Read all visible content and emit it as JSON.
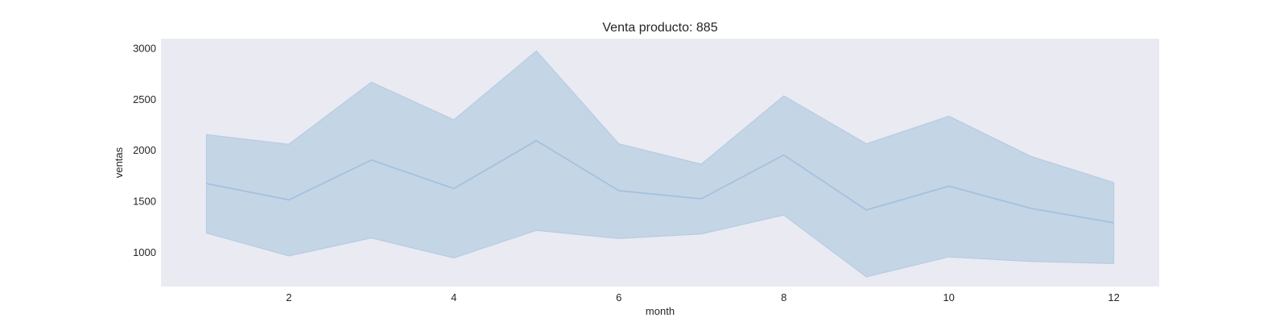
{
  "chart_data": {
    "type": "line",
    "title": "Venta producto: 885",
    "xlabel": "month",
    "ylabel": "ventas",
    "xlim": [
      0.45,
      12.55
    ],
    "ylim": [
      660,
      3090
    ],
    "xticks": [
      2,
      4,
      6,
      8,
      10,
      12
    ],
    "yticks": [
      1000,
      1500,
      2000,
      2500,
      3000
    ],
    "grid": false,
    "legend": "none",
    "colors": {
      "plot_background": "#EAEAF2",
      "line": "#A4C2DD",
      "band_fill": "#A4C2DD"
    },
    "series": [
      {
        "x": [
          1,
          2,
          3,
          4,
          5,
          6,
          7,
          8,
          9,
          10,
          11,
          12
        ],
        "values": [
          1670,
          1510,
          1900,
          1620,
          2090,
          1600,
          1520,
          1950,
          1410,
          1645,
          1425,
          1285
        ],
        "ci_upper": [
          2150,
          2055,
          2665,
          2295,
          2970,
          2060,
          1860,
          2530,
          2060,
          2330,
          1935,
          1680
        ],
        "ci_lower": [
          1185,
          960,
          1135,
          940,
          1210,
          1130,
          1175,
          1360,
          755,
          950,
          905,
          885
        ]
      }
    ]
  }
}
